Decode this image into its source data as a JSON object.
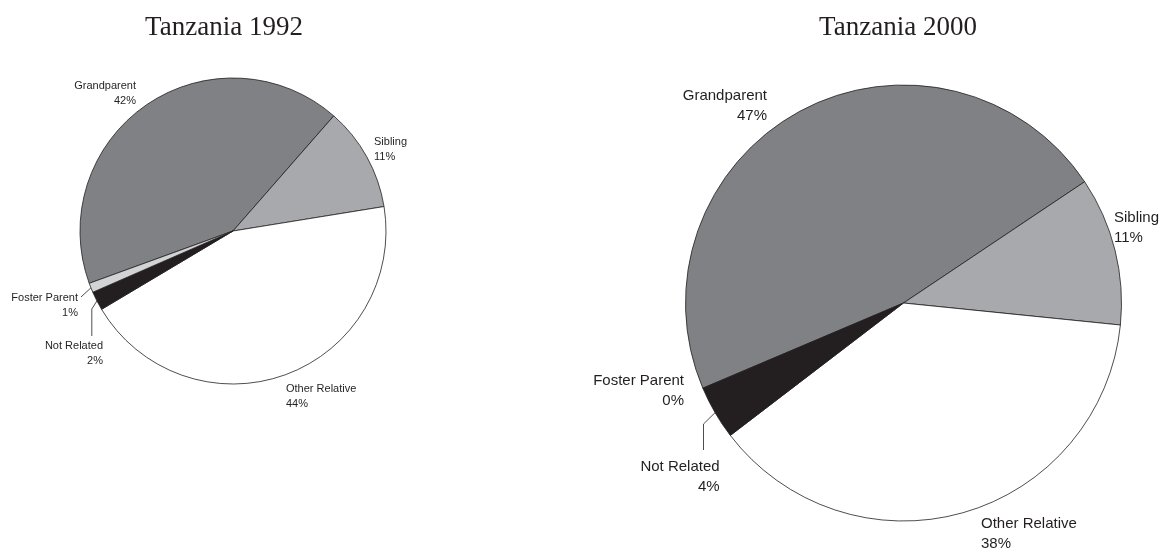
{
  "chart_data": [
    {
      "type": "pie",
      "title": "Tanzania 1992",
      "categories": [
        "Grandparent",
        "Sibling",
        "Other Relative",
        "Not Related",
        "Foster Parent"
      ],
      "values": [
        42,
        11,
        44,
        2,
        1
      ],
      "colors": [
        "#808184",
        "#a7a9ac",
        "#ffffff",
        "#231f20",
        "#d1d3d4"
      ],
      "value_labels": [
        "42%",
        "11%",
        "44%",
        "2%",
        "1%"
      ]
    },
    {
      "type": "pie",
      "title": "Tanzania 2000",
      "categories": [
        "Grandparent",
        "Sibling",
        "Other Relative",
        "Not Related",
        "Foster Parent"
      ],
      "values": [
        47,
        11,
        38,
        4,
        0
      ],
      "colors": [
        "#808184",
        "#a7a9ac",
        "#ffffff",
        "#231f20",
        null
      ],
      "value_labels": [
        "47%",
        "11%",
        "38%",
        "4%",
        "0%"
      ]
    }
  ]
}
